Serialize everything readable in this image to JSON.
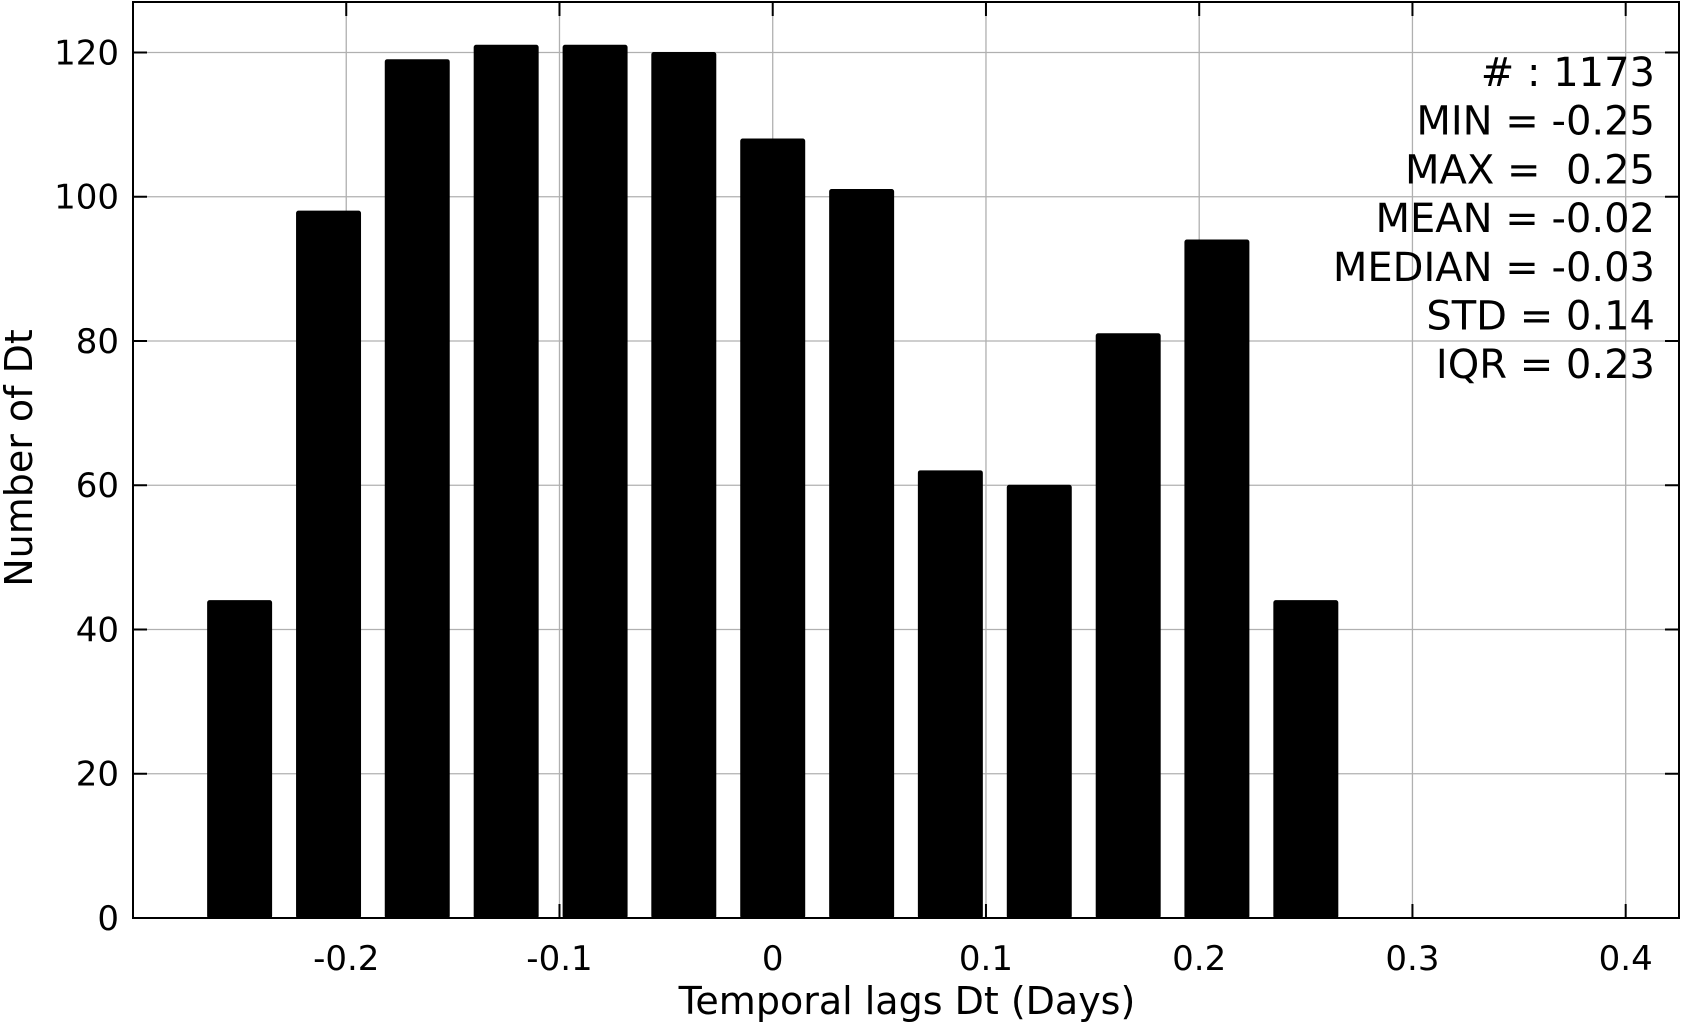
{
  "chart_data": {
    "type": "bar",
    "title": "",
    "xlabel": "Temporal lags Dt (Days)",
    "ylabel": "Number of Dt",
    "x": [
      -0.25,
      -0.2083,
      -0.1667,
      -0.125,
      -0.0833,
      -0.0417,
      0.0,
      0.0417,
      0.0833,
      0.125,
      0.1667,
      0.2083,
      0.25
    ],
    "values": [
      44,
      98,
      119,
      121,
      121,
      120,
      108,
      101,
      62,
      60,
      81,
      94,
      44
    ],
    "bar_width": 0.03,
    "xlim": [
      -0.3,
      0.425
    ],
    "ylim": [
      0,
      127
    ],
    "xticks": [
      -0.2,
      -0.1,
      0,
      0.1,
      0.2,
      0.3,
      0.4
    ],
    "xtick_labels": [
      "-0.2",
      "-0.1",
      "0",
      "0.1",
      "0.2",
      "0.3",
      "0.4"
    ],
    "yticks": [
      0,
      20,
      40,
      60,
      80,
      100,
      120
    ],
    "ytick_labels": [
      "0",
      "20",
      "40",
      "60",
      "80",
      "100",
      "120"
    ],
    "grid": true,
    "bar_color": "#000000",
    "grid_color": "#b0b0b0",
    "annotations": [
      "# : 1173",
      "MIN = -0.25",
      "MAX =  0.25",
      "MEAN = -0.02",
      "MEDIAN = -0.03",
      "STD = 0.14",
      "IQR = 0.23"
    ],
    "annotation_placement": "top-right"
  }
}
